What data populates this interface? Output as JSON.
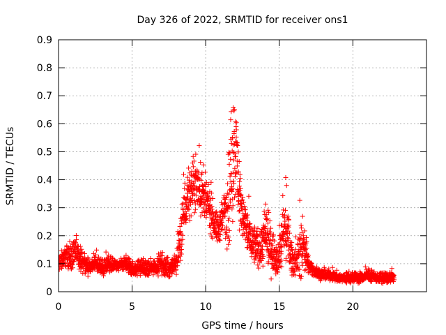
{
  "chart_data": {
    "type": "scatter",
    "title": "Day 326 of 2022, SRMTID for receiver ons1",
    "xlabel": "GPS time / hours",
    "ylabel": "SRMTID / TECUs",
    "xlim": [
      0,
      25
    ],
    "ylim": [
      0,
      0.9
    ],
    "xticks": [
      0,
      5,
      10,
      15,
      20
    ],
    "yticks": [
      0,
      0.1,
      0.2,
      0.3,
      0.4,
      0.5,
      0.6,
      0.7,
      0.8,
      0.9
    ],
    "xtick_labels": [
      "0",
      "5",
      "10",
      "15",
      "20"
    ],
    "ytick_labels": [
      "0",
      "0.1",
      "0.2",
      "0.3",
      "0.4",
      "0.5",
      "0.6",
      "0.7",
      "0.8",
      "0.9"
    ],
    "grid": true,
    "marker": "+",
    "color": "#ff0000",
    "x_sample_range": [
      0,
      22.8
    ],
    "series": [
      {
        "name": "SRMTID",
        "x": [
          0.0,
          0.5,
          1.0,
          1.2,
          1.5,
          2.0,
          2.5,
          3.0,
          3.5,
          4.0,
          4.5,
          5.0,
          5.5,
          6.0,
          6.5,
          7.0,
          7.5,
          8.0,
          8.3,
          8.5,
          8.8,
          9.0,
          9.3,
          9.6,
          9.9,
          10.2,
          10.5,
          10.8,
          11.1,
          11.3,
          11.6,
          11.8,
          12.0,
          12.2,
          12.5,
          12.8,
          13.1,
          13.4,
          13.7,
          14.0,
          14.3,
          14.6,
          14.9,
          15.2,
          15.5,
          15.8,
          16.1,
          16.4,
          16.7,
          17.0,
          17.5,
          18.0,
          18.5,
          19.0,
          19.5,
          20.0,
          20.5,
          21.0,
          21.5,
          22.0,
          22.5,
          22.8
        ],
        "y": [
          0.1,
          0.13,
          0.12,
          0.15,
          0.11,
          0.09,
          0.1,
          0.08,
          0.1,
          0.09,
          0.1,
          0.08,
          0.09,
          0.08,
          0.09,
          0.1,
          0.08,
          0.1,
          0.2,
          0.3,
          0.33,
          0.36,
          0.39,
          0.37,
          0.33,
          0.3,
          0.26,
          0.22,
          0.25,
          0.3,
          0.35,
          0.45,
          0.55,
          0.4,
          0.27,
          0.22,
          0.18,
          0.16,
          0.15,
          0.2,
          0.17,
          0.14,
          0.12,
          0.2,
          0.23,
          0.13,
          0.1,
          0.14,
          0.17,
          0.09,
          0.07,
          0.06,
          0.06,
          0.05,
          0.05,
          0.05,
          0.05,
          0.06,
          0.05,
          0.05,
          0.05,
          0.05
        ],
        "spread": [
          0.03,
          0.04,
          0.05,
          0.05,
          0.04,
          0.03,
          0.03,
          0.03,
          0.03,
          0.02,
          0.03,
          0.03,
          0.03,
          0.03,
          0.03,
          0.04,
          0.03,
          0.04,
          0.1,
          0.12,
          0.1,
          0.1,
          0.1,
          0.11,
          0.1,
          0.08,
          0.07,
          0.06,
          0.07,
          0.12,
          0.2,
          0.25,
          0.2,
          0.15,
          0.1,
          0.09,
          0.08,
          0.07,
          0.07,
          0.12,
          0.1,
          0.08,
          0.06,
          0.12,
          0.14,
          0.06,
          0.05,
          0.1,
          0.1,
          0.03,
          0.02,
          0.02,
          0.02,
          0.02,
          0.02,
          0.02,
          0.02,
          0.02,
          0.02,
          0.02,
          0.02,
          0.02
        ]
      }
    ]
  }
}
